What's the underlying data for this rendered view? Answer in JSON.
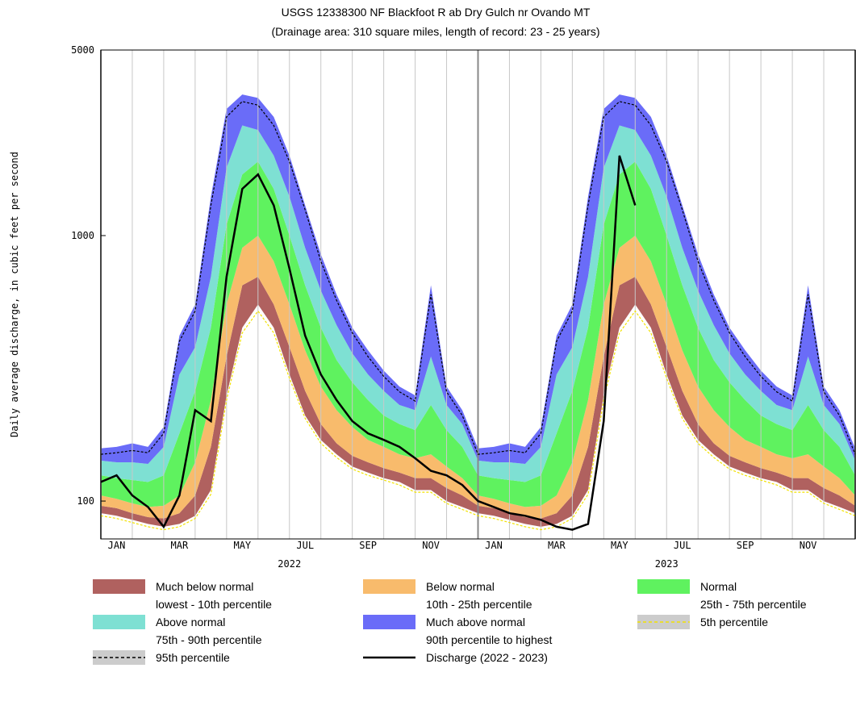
{
  "chart_data": {
    "type": "percentile-bands",
    "title": "USGS 12338300 NF Blackfoot R ab Dry Gulch nr Ovando MT",
    "subtitle": "(Drainage area: 310 square miles, length of record: 23 - 25 years)",
    "y_label": "Daily average discharge, in cubic feet per second",
    "log_scale": true,
    "ylim": [
      72,
      5000
    ],
    "yticks": [
      100,
      1000,
      5000
    ],
    "xlim": [
      0,
      24
    ],
    "xticks": [
      {
        "value": 0.5,
        "label": "JAN"
      },
      {
        "value": 2.5,
        "label": "MAR"
      },
      {
        "value": 4.5,
        "label": "MAY"
      },
      {
        "value": 6.5,
        "label": "JUL"
      },
      {
        "value": 8.5,
        "label": "SEP"
      },
      {
        "value": 10.5,
        "label": "NOV"
      },
      {
        "value": 12.5,
        "label": "JAN"
      },
      {
        "value": 14.5,
        "label": "MAR"
      },
      {
        "value": 16.5,
        "label": "MAY"
      },
      {
        "value": 18.5,
        "label": "JUL"
      },
      {
        "value": 20.5,
        "label": "SEP"
      },
      {
        "value": 22.5,
        "label": "NOV"
      }
    ],
    "year_labels": [
      {
        "value": 6,
        "label": "2022"
      },
      {
        "value": 18,
        "label": "2023"
      }
    ],
    "grid": true,
    "x": [
      0,
      0.5,
      1,
      1.5,
      2,
      2.5,
      3,
      3.5,
      4,
      4.5,
      5,
      5.5,
      6,
      6.5,
      7,
      7.5,
      8,
      8.5,
      9,
      9.5,
      10,
      10.5,
      11,
      11.5,
      12,
      12.5,
      13,
      13.5,
      14,
      14.5,
      15,
      15.5,
      16,
      16.5,
      17,
      17.5,
      18,
      18.5,
      19,
      19.5,
      20,
      20.5,
      21,
      21.5,
      22,
      22.5,
      23,
      23.5,
      24
    ],
    "bands": [
      {
        "name": "Much below normal",
        "description": "lowest - 10th percentile",
        "color": "#b0615f",
        "low": [
          90,
          88,
          85,
          82,
          80,
          82,
          88,
          110,
          250,
          450,
          550,
          450,
          300,
          210,
          170,
          150,
          135,
          128,
          122,
          118,
          110,
          110,
          100,
          95,
          90,
          88,
          85,
          82,
          80,
          82,
          88,
          110,
          250,
          450,
          550,
          450,
          300,
          210,
          170,
          150,
          135,
          128,
          122,
          118,
          110,
          110,
          100,
          95,
          90
        ],
        "high": [
          96,
          94,
          90,
          87,
          86,
          90,
          105,
          160,
          350,
          650,
          700,
          550,
          380,
          260,
          195,
          165,
          148,
          140,
          133,
          128,
          122,
          122,
          112,
          105,
          96,
          94,
          90,
          87,
          86,
          90,
          105,
          160,
          350,
          650,
          700,
          550,
          380,
          260,
          195,
          165,
          148,
          140,
          133,
          128,
          122,
          122,
          112,
          105,
          96
        ]
      },
      {
        "name": "Below normal",
        "description": "10th - 25th percentile",
        "color": "#f8bb6c",
        "high": [
          105,
          102,
          98,
          95,
          96,
          105,
          140,
          240,
          550,
          900,
          1000,
          800,
          550,
          370,
          270,
          220,
          190,
          170,
          160,
          150,
          145,
          150,
          135,
          122,
          105,
          102,
          98,
          95,
          96,
          105,
          140,
          240,
          550,
          900,
          1000,
          800,
          550,
          370,
          270,
          220,
          190,
          170,
          160,
          150,
          145,
          150,
          135,
          122,
          105
        ]
      },
      {
        "name": "Normal",
        "description": "25th - 75th percentile",
        "color": "#5ff25f",
        "high": [
          125,
          122,
          120,
          118,
          125,
          180,
          260,
          450,
          1100,
          1700,
          1900,
          1500,
          1000,
          650,
          450,
          340,
          280,
          240,
          210,
          195,
          185,
          230,
          185,
          160,
          125,
          122,
          120,
          118,
          125,
          180,
          260,
          450,
          1100,
          1700,
          1900,
          1500,
          1000,
          650,
          450,
          340,
          280,
          240,
          210,
          195,
          185,
          230,
          185,
          160,
          125
        ]
      },
      {
        "name": "Above normal",
        "description": "75th - 90th percentile",
        "color": "#7ee0d3",
        "high": [
          142,
          140,
          140,
          138,
          160,
          300,
          380,
          700,
          1800,
          2600,
          2500,
          2000,
          1400,
          900,
          620,
          460,
          360,
          300,
          260,
          230,
          220,
          350,
          230,
          195,
          142,
          140,
          140,
          138,
          160,
          300,
          380,
          700,
          1800,
          2600,
          2500,
          2000,
          1400,
          900,
          620,
          460,
          360,
          300,
          260,
          230,
          220,
          350,
          230,
          195,
          142
        ]
      },
      {
        "name": "Much above normal",
        "description": "90th percentile to highest",
        "color": "#6a6cf8",
        "high": [
          158,
          160,
          165,
          160,
          190,
          420,
          550,
          1400,
          3000,
          3400,
          3300,
          2800,
          2000,
          1300,
          850,
          600,
          450,
          370,
          310,
          270,
          250,
          650,
          270,
          220,
          158,
          160,
          165,
          160,
          190,
          420,
          550,
          1400,
          3000,
          3400,
          3300,
          2800,
          2000,
          1300,
          850,
          600,
          450,
          370,
          310,
          270,
          250,
          650,
          270,
          220,
          158
        ]
      }
    ],
    "lines": [
      {
        "name": "5th percentile",
        "color": "#f2e200",
        "dashed": true,
        "values": [
          88,
          86,
          83,
          80,
          78,
          80,
          86,
          106,
          240,
          430,
          520,
          430,
          290,
          205,
          165,
          146,
          132,
          125,
          120,
          115,
          108,
          108,
          98,
          93,
          88,
          86,
          83,
          80,
          78,
          80,
          86,
          106,
          240,
          430,
          520,
          430,
          290,
          205,
          165,
          146,
          132,
          125,
          120,
          115,
          108,
          108,
          98,
          93,
          88
        ]
      },
      {
        "name": "95th percentile",
        "color": "#000000",
        "dashed": true,
        "values": [
          150,
          152,
          155,
          152,
          180,
          400,
          520,
          1300,
          2800,
          3200,
          3100,
          2600,
          1900,
          1250,
          800,
          570,
          430,
          350,
          295,
          258,
          238,
          600,
          258,
          210,
          150,
          152,
          155,
          152,
          180,
          400,
          520,
          1300,
          2800,
          3200,
          3100,
          2600,
          1900,
          1250,
          800,
          570,
          430,
          350,
          295,
          258,
          238,
          600,
          258,
          210,
          150
        ]
      },
      {
        "name": "Discharge (2022 - 2023)",
        "color": "#000000",
        "dashed": false,
        "values": [
          118,
          125,
          105,
          95,
          80,
          105,
          220,
          200,
          700,
          1500,
          1700,
          1300,
          750,
          420,
          300,
          240,
          200,
          180,
          170,
          160,
          145,
          130,
          125,
          115,
          100,
          95,
          90,
          88,
          85,
          80,
          78,
          82,
          200,
          2000,
          1300,
          null,
          null,
          null,
          null,
          null,
          null,
          null,
          null,
          null,
          null,
          null,
          null,
          null,
          null
        ]
      }
    ]
  }
}
